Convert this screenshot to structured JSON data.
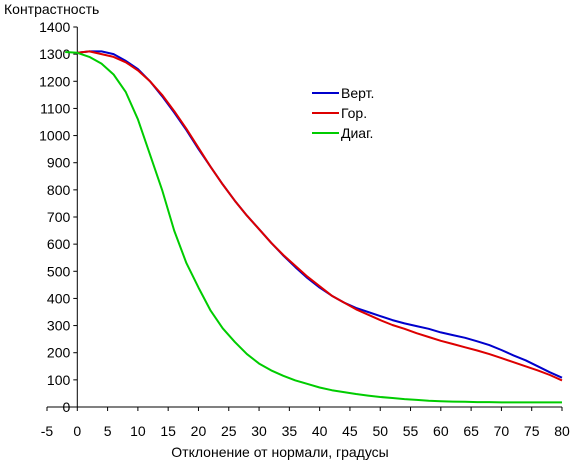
{
  "chart_data": {
    "type": "line",
    "ylabel": "Контрастность",
    "xlabel": "Отклонение от нормали, градусы",
    "xlim": [
      -5,
      80
    ],
    "ylim": [
      0,
      1400
    ],
    "xticks": [
      -5,
      0,
      5,
      10,
      15,
      20,
      25,
      30,
      35,
      40,
      45,
      50,
      55,
      60,
      65,
      70,
      75,
      80
    ],
    "yticks": [
      0,
      100,
      200,
      300,
      400,
      500,
      600,
      700,
      800,
      900,
      1000,
      1100,
      1200,
      1300,
      1400
    ],
    "grid": false,
    "legend_position": "upper-right",
    "series": [
      {
        "name": "Верт.",
        "color": "#0000cc",
        "x": [
          0,
          2,
          4,
          6,
          8,
          10,
          12,
          14,
          16,
          18,
          20,
          22,
          24,
          26,
          28,
          30,
          32,
          34,
          36,
          38,
          40,
          42,
          44,
          46,
          48,
          50,
          52,
          54,
          56,
          58,
          60,
          62,
          64,
          66,
          68,
          70,
          72,
          74,
          76,
          78,
          80
        ],
        "values": [
          1305,
          1310,
          1310,
          1300,
          1275,
          1245,
          1200,
          1145,
          1085,
          1020,
          950,
          885,
          820,
          760,
          705,
          655,
          605,
          558,
          515,
          475,
          440,
          410,
          385,
          365,
          350,
          335,
          320,
          308,
          298,
          288,
          275,
          265,
          255,
          242,
          228,
          210,
          190,
          172,
          150,
          128,
          108
        ]
      },
      {
        "name": "Гор.",
        "color": "#dd0000",
        "x": [
          0,
          2,
          4,
          6,
          8,
          10,
          12,
          14,
          16,
          18,
          20,
          22,
          24,
          26,
          28,
          30,
          32,
          34,
          36,
          38,
          40,
          42,
          44,
          46,
          48,
          50,
          52,
          54,
          56,
          58,
          60,
          62,
          64,
          66,
          68,
          70,
          72,
          74,
          76,
          78,
          80
        ],
        "values": [
          1305,
          1310,
          1300,
          1290,
          1270,
          1240,
          1200,
          1150,
          1090,
          1025,
          955,
          885,
          820,
          760,
          705,
          655,
          605,
          560,
          520,
          480,
          445,
          410,
          385,
          360,
          340,
          320,
          302,
          288,
          272,
          258,
          244,
          232,
          220,
          208,
          195,
          180,
          165,
          150,
          135,
          118,
          98
        ]
      },
      {
        "name": "Диаг.",
        "color": "#00cc00",
        "x": [
          -2,
          0,
          2,
          4,
          6,
          8,
          10,
          12,
          14,
          16,
          18,
          20,
          22,
          24,
          26,
          28,
          30,
          32,
          34,
          36,
          38,
          40,
          42,
          44,
          46,
          48,
          50,
          52,
          54,
          56,
          58,
          60,
          62,
          64,
          66,
          68,
          70,
          72,
          74,
          76,
          78,
          80
        ],
        "values": [
          1308,
          1305,
          1290,
          1265,
          1225,
          1160,
          1060,
          930,
          800,
          650,
          530,
          440,
          355,
          290,
          240,
          195,
          160,
          135,
          115,
          98,
          85,
          72,
          62,
          55,
          48,
          42,
          37,
          33,
          29,
          26,
          23,
          21,
          20,
          19,
          18,
          18,
          17,
          17,
          17,
          17,
          17,
          17
        ]
      }
    ]
  }
}
